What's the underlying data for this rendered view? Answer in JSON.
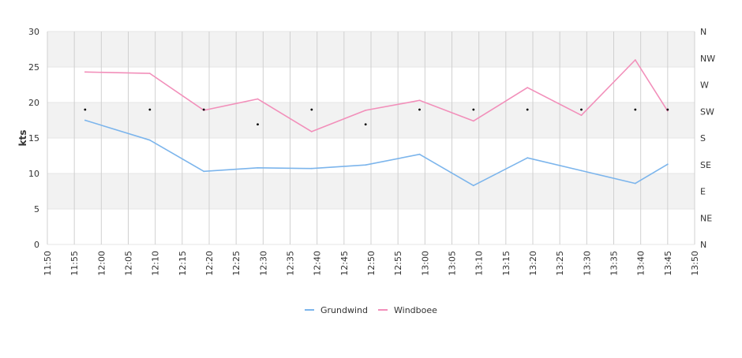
{
  "chart_data": {
    "type": "line",
    "ylabel": "kts",
    "ylim": [
      0,
      30
    ],
    "y_ticks": [
      "0",
      "5",
      "10",
      "15",
      "20",
      "25",
      "30"
    ],
    "x_ticks": [
      "11:50",
      "11:55",
      "12:00",
      "12:05",
      "12:10",
      "12:15",
      "12:20",
      "12:25",
      "12:30",
      "12:35",
      "12:40",
      "12:45",
      "12:50",
      "12:55",
      "13:00",
      "13:05",
      "13:10",
      "13:15",
      "13:20",
      "13:25",
      "13:30",
      "13:35",
      "13:40",
      "13:45",
      "13:50"
    ],
    "xlim": [
      "11:50",
      "13:50"
    ],
    "right_axis": {
      "label": "",
      "ticks": [
        "N",
        "NE",
        "E",
        "SE",
        "S",
        "SW",
        "W",
        "NW",
        "N"
      ],
      "range_degrees": [
        0,
        360
      ]
    },
    "grid": true,
    "legend_position": "bottom",
    "x": [
      "11:57",
      "12:09",
      "12:19",
      "12:29",
      "12:39",
      "12:49",
      "12:59",
      "13:09",
      "13:19",
      "13:29",
      "13:39",
      "13:45"
    ],
    "series": [
      {
        "name": "Grundwind",
        "color": "#7cb5ec",
        "values": [
          17.5,
          14.7,
          10.3,
          10.8,
          10.7,
          11.2,
          12.7,
          8.3,
          12.2,
          10.4,
          8.6,
          11.3
        ]
      },
      {
        "name": "Windboee",
        "color": "#f28fba",
        "values": [
          24.3,
          24.1,
          18.9,
          20.5,
          15.9,
          18.9,
          20.3,
          17.4,
          22.1,
          18.2,
          26.0,
          18.8
        ]
      }
    ],
    "direction": {
      "unit": "degrees",
      "values": [
        228,
        228,
        228,
        203,
        228,
        203,
        228,
        228,
        228,
        228,
        228,
        228
      ]
    }
  }
}
